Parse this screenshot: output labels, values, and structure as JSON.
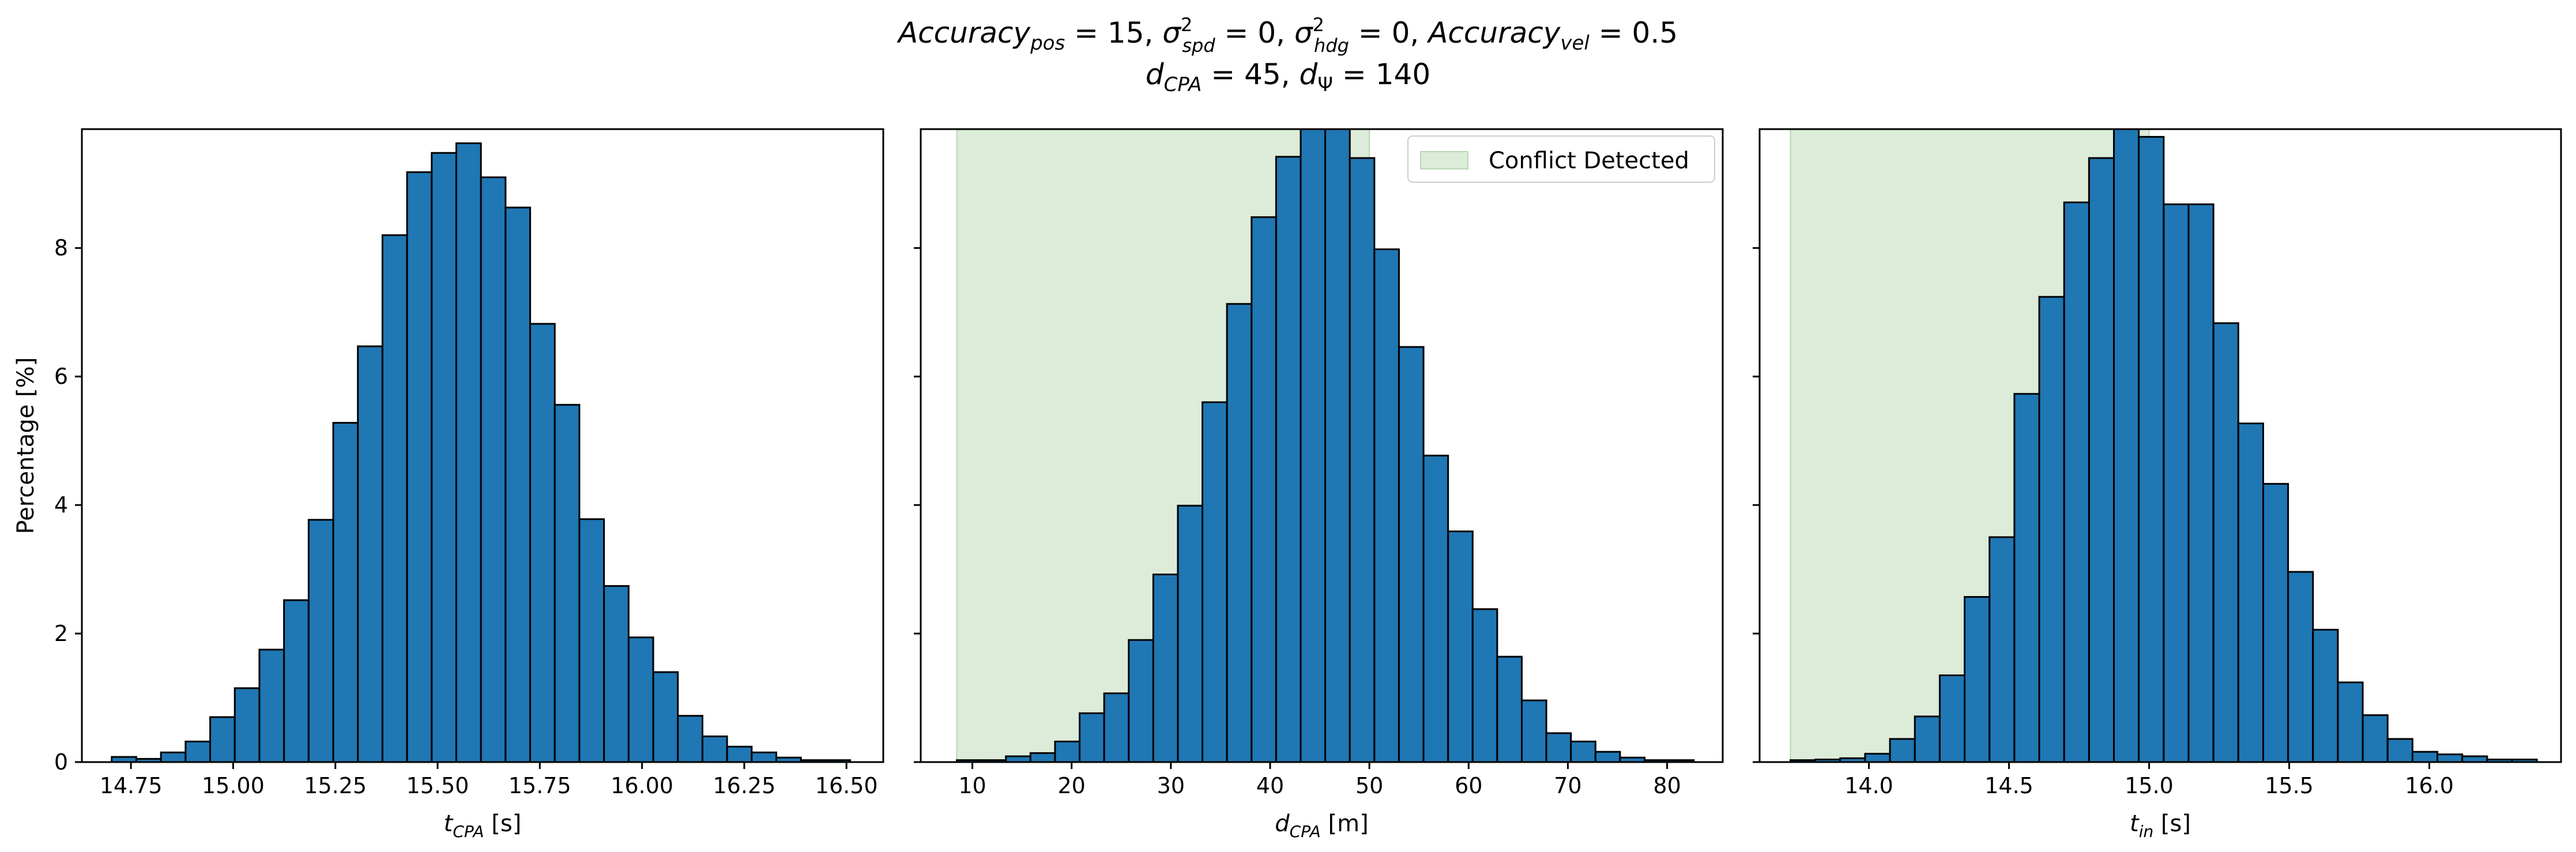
{
  "chart_data": [
    {
      "type": "bar",
      "panel": "t_cpa",
      "xlabel_main": "t",
      "xlabel_sub": "CPA",
      "xlabel_unit": " [s]",
      "ylabel": "Percentage [%]",
      "x_ticks": [
        14.75,
        15.0,
        15.25,
        15.5,
        15.75,
        16.0,
        16.25,
        16.5
      ],
      "x_tick_labels": [
        "14.75",
        "15.00",
        "15.25",
        "15.50",
        "15.75",
        "16.00",
        "16.25",
        "16.50"
      ],
      "xlim": [
        14.63,
        16.59
      ],
      "ylim": [
        0,
        9.85
      ],
      "y_ticks": [
        0,
        2,
        4,
        6,
        8
      ],
      "y_tick_labels": [
        "0",
        "2",
        "4",
        "6",
        "8"
      ],
      "bin_start": 14.703,
      "bin_width": 0.0602,
      "values": [
        0.08,
        0.05,
        0.15,
        0.32,
        0.7,
        1.15,
        1.75,
        2.52,
        3.77,
        5.28,
        6.47,
        8.2,
        9.18,
        9.48,
        9.63,
        9.1,
        8.63,
        6.82,
        5.56,
        3.78,
        2.74,
        1.94,
        1.4,
        0.72,
        0.4,
        0.24,
        0.15,
        0.07,
        0.03,
        0.03
      ]
    },
    {
      "type": "bar",
      "panel": "d_cpa",
      "xlabel_main": "d",
      "xlabel_sub": "CPA",
      "xlabel_unit": " [m]",
      "x_ticks": [
        10,
        20,
        30,
        40,
        50,
        60,
        70,
        80
      ],
      "x_tick_labels": [
        "10",
        "20",
        "30",
        "40",
        "50",
        "60",
        "70",
        "80"
      ],
      "xlim": [
        4.8,
        85.6
      ],
      "ylim": [
        0,
        9.85
      ],
      "y_ticks": [
        0,
        2,
        4,
        6,
        8
      ],
      "bin_start": 8.43,
      "bin_width": 2.475,
      "shade_range": [
        8.43,
        50.0
      ],
      "shade_color": "#dcecd9",
      "bar_color": "#1f77b4",
      "legend": "Conflict Detected",
      "values": [
        0.03,
        0.03,
        0.09,
        0.14,
        0.32,
        0.76,
        1.07,
        1.9,
        2.92,
        3.99,
        5.6,
        7.13,
        8.48,
        9.42,
        10.06,
        9.98,
        9.4,
        7.98,
        6.46,
        4.77,
        3.59,
        2.38,
        1.64,
        0.96,
        0.45,
        0.32,
        0.16,
        0.07,
        0.03,
        0.03
      ]
    },
    {
      "type": "bar",
      "panel": "t_in",
      "xlabel_main": "t",
      "xlabel_sub": "in",
      "xlabel_unit": " [s]",
      "x_ticks": [
        14.0,
        14.5,
        15.0,
        15.5,
        16.0
      ],
      "x_tick_labels": [
        "14.0",
        "14.5",
        "15.0",
        "15.5",
        "16.0"
      ],
      "xlim": [
        13.61,
        16.47
      ],
      "ylim": [
        0,
        9.85
      ],
      "y_ticks": [
        0,
        2,
        4,
        6,
        8
      ],
      "bin_start": 13.72,
      "bin_width": 0.0888,
      "shade_range": [
        13.72,
        15.0
      ],
      "values": [
        0.03,
        0.04,
        0.06,
        0.13,
        0.36,
        0.71,
        1.35,
        2.57,
        3.5,
        5.73,
        7.24,
        8.71,
        9.4,
        10.03,
        9.73,
        8.68,
        8.68,
        6.83,
        5.27,
        4.33,
        2.96,
        2.06,
        1.24,
        0.73,
        0.36,
        0.16,
        0.12,
        0.09,
        0.04,
        0.04
      ]
    }
  ]
}
